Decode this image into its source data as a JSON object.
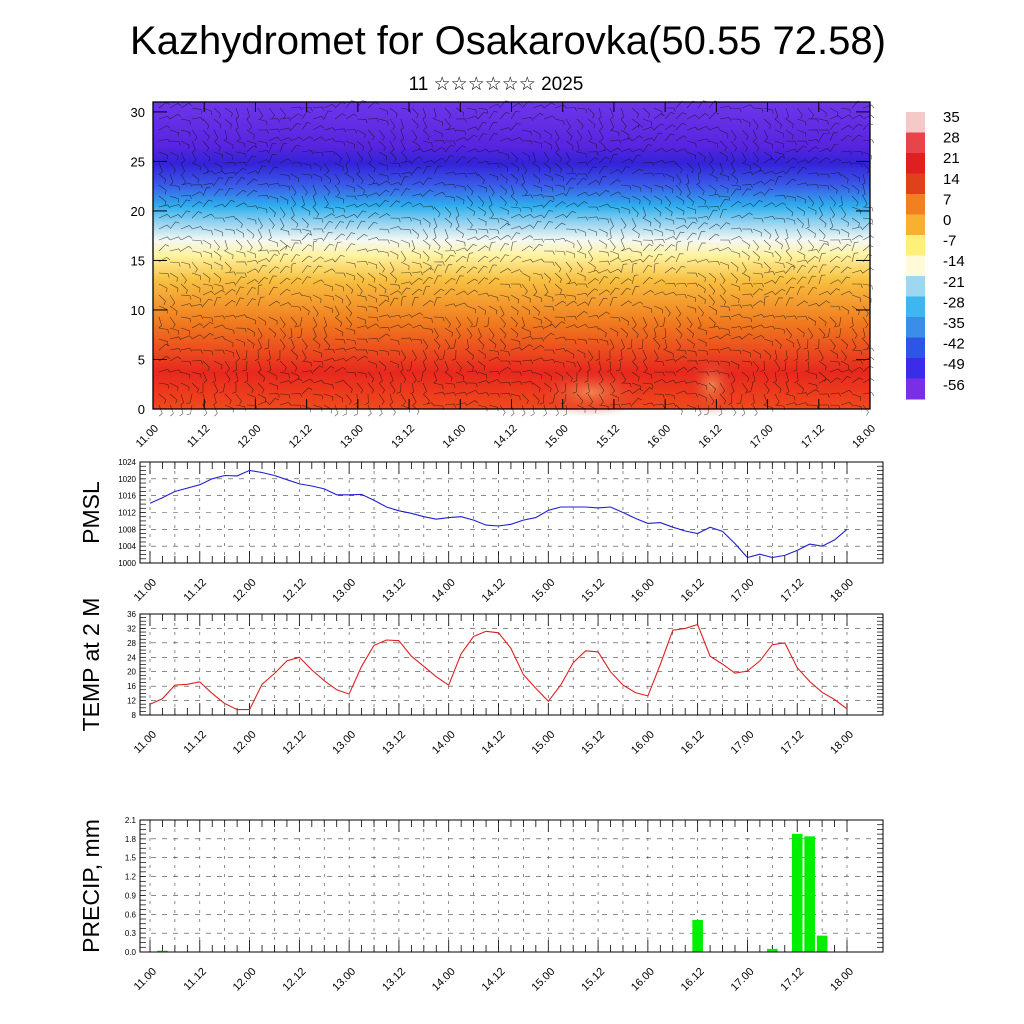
{
  "title": "Kazhydromet for Osakarovka(50.55 72.58)",
  "subtitle": "11 ☆☆☆☆☆☆ 2025",
  "colorbar": {
    "labels": [
      "35",
      "28",
      "21",
      "14",
      "7",
      "0",
      "-7",
      "-14",
      "-21",
      "-28",
      "-35",
      "-42",
      "-49",
      "-56"
    ],
    "colors": [
      "#f6c9c9",
      "#e8454a",
      "#e02020",
      "#e0401c",
      "#f08020",
      "#f8b030",
      "#fff07a",
      "#fffbd8",
      "#9fd6f0",
      "#3fb6ef",
      "#3a8ee8",
      "#2f55e8",
      "#3a2ce8",
      "#7a2ee8"
    ]
  },
  "chart_data": [
    {
      "type": "heatmap",
      "title": "Kazhydromet for Osakarovka(50.55 72.58)",
      "subtitle": "11 ☆☆☆☆☆☆ 2025",
      "x_ticks": [
        "11.00",
        "11.12",
        "12.00",
        "12.12",
        "13.00",
        "13.12",
        "14.00",
        "14.12",
        "15.00",
        "15.12",
        "16.00",
        "16.12",
        "17.00",
        "17.12",
        "18.00"
      ],
      "y_ticks": [
        0,
        5,
        10,
        15,
        20,
        25,
        30
      ],
      "ylim": [
        0,
        31
      ],
      "color_levels": [
        35,
        28,
        21,
        14,
        7,
        0,
        -7,
        -14,
        -21,
        -28,
        -35,
        -42,
        -49,
        -56
      ],
      "temperature_profile": [
        {
          "level": 0,
          "value": 22
        },
        {
          "level": 5,
          "value": 18
        },
        {
          "level": 10,
          "value": 8
        },
        {
          "level": 14,
          "value": -6
        },
        {
          "level": 16,
          "value": -10
        },
        {
          "level": 18,
          "value": -26
        },
        {
          "level": 20,
          "value": -38
        },
        {
          "level": 22,
          "value": -46
        },
        {
          "level": 25,
          "value": -54
        },
        {
          "level": 28,
          "value": -50
        },
        {
          "level": 31,
          "value": -48
        }
      ],
      "overlay": "wind barbs"
    },
    {
      "type": "line",
      "ylabel": "PMSL",
      "ylim": [
        1000,
        1024
      ],
      "y_ticks": [
        1000,
        1004,
        1008,
        1012,
        1016,
        1020,
        1024
      ],
      "x_ticks": [
        "11.00",
        "11.12",
        "12.00",
        "12.12",
        "13.00",
        "13.12",
        "14.00",
        "14.12",
        "15.00",
        "15.12",
        "16.00",
        "16.12",
        "17.00",
        "17.12",
        "18.00"
      ],
      "x_hours": [
        0,
        3,
        6,
        9,
        12,
        15,
        18,
        21,
        24,
        27,
        30,
        33,
        36,
        39,
        42,
        45,
        48,
        51,
        54,
        57,
        60,
        63,
        66,
        69,
        72,
        75,
        78,
        81,
        84,
        87,
        90,
        93,
        96,
        99,
        102,
        105,
        108,
        111,
        114,
        117,
        120,
        123,
        126,
        129,
        132,
        135,
        138,
        141,
        144,
        147,
        150,
        153,
        156,
        159,
        162,
        165,
        168
      ],
      "values": [
        1014.2,
        1015.5,
        1017.0,
        1017.8,
        1018.6,
        1020.0,
        1020.8,
        1020.7,
        1022.0,
        1021.5,
        1020.8,
        1019.8,
        1018.8,
        1018.3,
        1017.6,
        1016.2,
        1016.2,
        1016.3,
        1014.9,
        1013.3,
        1012.4,
        1011.8,
        1011.0,
        1010.4,
        1010.8,
        1011.0,
        1010.2,
        1009.0,
        1008.8,
        1009.2,
        1010.2,
        1010.8,
        1012.5,
        1013.3,
        1013.3,
        1013.3,
        1013.1,
        1013.3,
        1012.0,
        1010.6,
        1009.4,
        1009.6,
        1008.5,
        1007.6,
        1007.0,
        1008.5,
        1007.5,
        1004.6,
        1001.3,
        1002.1,
        1001.3,
        1001.8,
        1003.0,
        1004.5,
        1004.0,
        1005.5,
        1008.0
      ],
      "line_color": "#1f1fd2"
    },
    {
      "type": "line",
      "ylabel": "TEMP at 2 M",
      "ylim": [
        8,
        36
      ],
      "y_ticks": [
        8,
        12,
        16,
        20,
        24,
        28,
        32,
        36
      ],
      "x_ticks": [
        "11.00",
        "11.12",
        "12.00",
        "12.12",
        "13.00",
        "13.12",
        "14.00",
        "14.12",
        "15.00",
        "15.12",
        "16.00",
        "16.12",
        "17.00",
        "17.12",
        "18.00"
      ],
      "x_hours": [
        0,
        3,
        6,
        9,
        12,
        15,
        18,
        21,
        24,
        27,
        30,
        33,
        36,
        39,
        42,
        45,
        48,
        51,
        54,
        57,
        60,
        63,
        66,
        69,
        72,
        75,
        78,
        81,
        84,
        87,
        90,
        93,
        96,
        99,
        102,
        105,
        108,
        111,
        114,
        117,
        120,
        123,
        126,
        129,
        132,
        135,
        138,
        141,
        144,
        147,
        150,
        153,
        156,
        159,
        162,
        165,
        168
      ],
      "values": [
        11,
        12.5,
        16.3,
        16.5,
        17.2,
        14,
        11.2,
        9.5,
        9.5,
        16.5,
        19.5,
        23,
        24,
        20.5,
        17.5,
        15,
        13.8,
        21.5,
        27.3,
        28.8,
        28.6,
        24.3,
        21.5,
        18.6,
        16.3,
        25,
        29.8,
        31.2,
        30.8,
        26.5,
        19.2,
        15.4,
        11.8,
        16.3,
        22.5,
        25.8,
        25.5,
        20,
        16.3,
        14.2,
        13.3,
        22,
        31.5,
        32,
        33.1,
        24.3,
        22.1,
        19.6,
        20.2,
        23,
        27.5,
        28,
        21.1,
        17.3,
        14.3,
        12.3,
        9.7
      ],
      "line_color": "#dd2020"
    },
    {
      "type": "bar",
      "ylabel": "PRECIP, mm",
      "ylim": [
        0,
        2.1
      ],
      "y_ticks": [
        "0.0",
        "0.3",
        "0.6",
        "0.9",
        "1.2",
        "1.5",
        "1.8",
        "2.1"
      ],
      "x_ticks": [
        "11.00",
        "11.12",
        "12.00",
        "12.12",
        "13.00",
        "13.12",
        "14.00",
        "14.12",
        "15.00",
        "15.12",
        "16.00",
        "16.12",
        "17.00",
        "17.12",
        "18.00"
      ],
      "bars": [
        {
          "hour": 3,
          "value": 0.02
        },
        {
          "hour": 132,
          "value": 0.51
        },
        {
          "hour": 141,
          "value": 0.01
        },
        {
          "hour": 150,
          "value": 0.05
        },
        {
          "hour": 156,
          "value": 1.88
        },
        {
          "hour": 159,
          "value": 1.84
        },
        {
          "hour": 162,
          "value": 0.26
        }
      ],
      "bar_color": "#00ee00"
    }
  ]
}
